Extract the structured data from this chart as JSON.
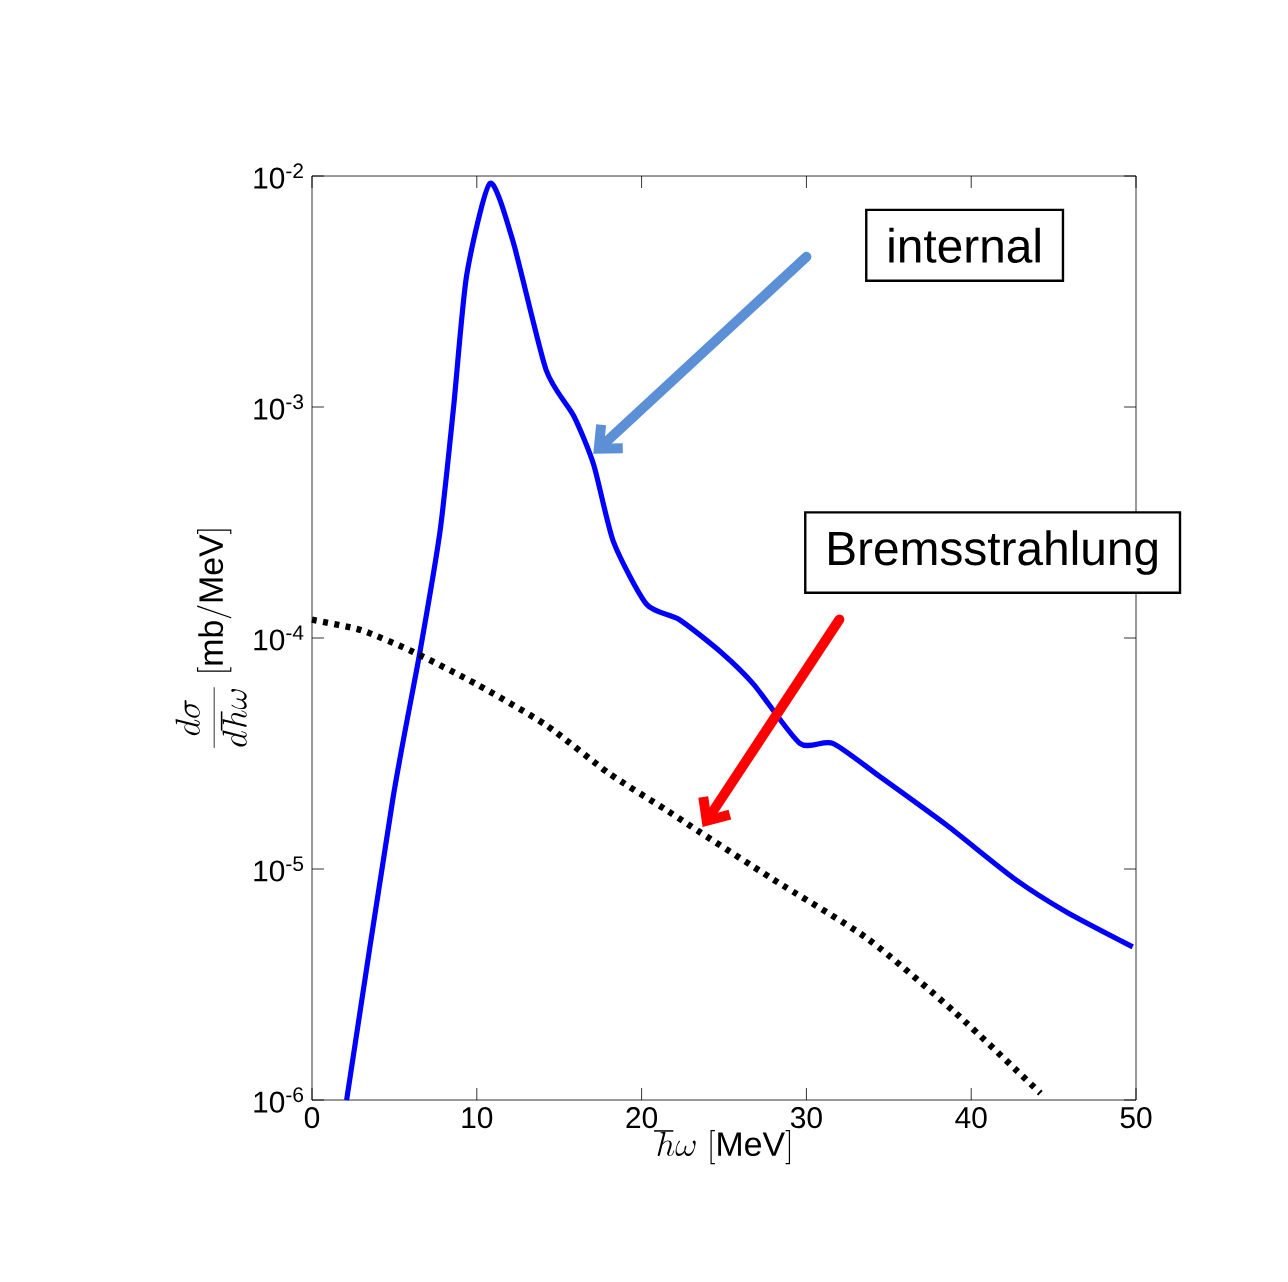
{
  "chart_data": {
    "type": "line",
    "xlabel": "\\hbar\\omega\\ [\\mathrm{MeV}]",
    "ylabel": "\\frac{d\\sigma}{d\\hbar\\omega}\\ [\\mathrm{mb/MeV}]",
    "log": "y",
    "xlim": [
      0,
      50
    ],
    "xticks": [
      0,
      10,
      20,
      30,
      40,
      50
    ],
    "ylim": [
      1e-06,
      0.01
    ],
    "yticks": [
      {
        "value": 1e-06,
        "label": "10$^{-6}$"
      },
      {
        "value": 1e-05,
        "label": "10$^{-5}$"
      },
      {
        "value": 0.0001,
        "label": "10$^{-4}$"
      },
      {
        "value": 0.001,
        "label": "10$^{-3}$"
      },
      {
        "value": 0.01,
        "label": "10$^{-2}$"
      }
    ],
    "series": [
      {
        "color": "#0000ff",
        "line_style": "solid",
        "x": [
          2.1,
          4.9,
          6.55,
          7.77,
          8.58,
          9.38,
          10.8,
          12.2,
          14.2,
          15.9,
          17.1,
          18.3,
          20.3,
          22.3,
          24.8,
          26.8,
          29.6,
          31.6,
          34.5,
          38.5,
          42.6,
          45.8,
          49.8
        ],
        "values": [
          1e-06,
          2e-05,
          8.7e-05,
          0.00029,
          0.00098,
          0.0037,
          0.0093,
          0.0052,
          0.00145,
          0.00091,
          0.00056,
          0.00026,
          0.00014,
          0.00012,
          8.7e-05,
          6.3e-05,
          3.5e-05,
          3.5e-05,
          2.5e-05,
          1.55e-05,
          9.1e-06,
          6.5e-06,
          4.6e-06
        ]
      },
      {
        "color": "#000000",
        "line_style": "dotted",
        "x": [
          0,
          3,
          6.15,
          10,
          14.2,
          18,
          21.5,
          23.5,
          28,
          33.7,
          39,
          44.2
        ],
        "values": [
          0.00012,
          0.000108,
          8.7e-05,
          6.3e-05,
          4.2e-05,
          2.6e-05,
          1.8e-05,
          1.45e-05,
          9e-06,
          5e-06,
          2.4e-06,
          1.07e-06
        ]
      }
    ],
    "annotations": [
      "internal",
      "Bremsstrahlung"
    ]
  }
}
